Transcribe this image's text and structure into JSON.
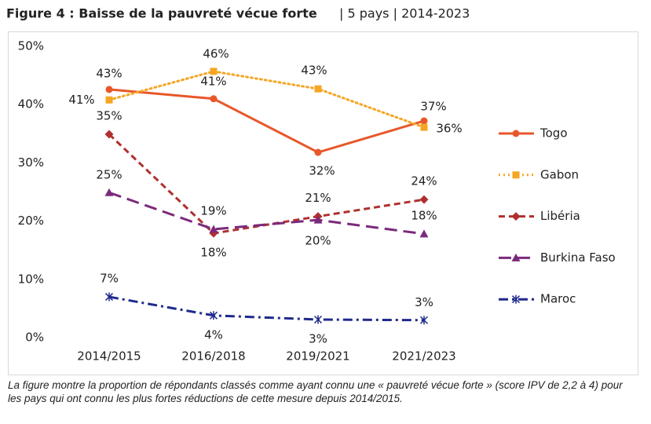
{
  "chart_data": {
    "type": "line",
    "title": "Figure 4 : Baisse de la pauvreté vécue forte",
    "subtitle": "| 5 pays | 2014-2023",
    "note": "La figure montre la proportion de répondants classés comme ayant connu une « pauvreté vécue forte » (score IPV de 2,2 à 4) pour les pays qui ont connu les plus fortes réductions de cette mesure depuis 2014/2015.",
    "categories": [
      "2014/2015",
      "2016/2018",
      "2019/2021",
      "2021/2023"
    ],
    "ylim": [
      0,
      50
    ],
    "yticks": [
      {
        "value": 0,
        "label": "0%"
      },
      {
        "value": 10,
        "label": "10%"
      },
      {
        "value": 20,
        "label": "20%"
      },
      {
        "value": 30,
        "label": "30%"
      },
      {
        "value": 40,
        "label": "40%"
      },
      {
        "value": 50,
        "label": "50%"
      }
    ],
    "grid": false,
    "legend": "right",
    "series": [
      {
        "name": "Togo",
        "color": "#e8572a",
        "line_style": "solid",
        "marker": "circle",
        "values": [
          42.6,
          41.0,
          31.8,
          37.2
        ],
        "value_labels": [
          "43%",
          "41%",
          "32%",
          "37%"
        ]
      },
      {
        "name": "Gabon",
        "color": "#f5a623",
        "line_style": "dotted",
        "marker": "square",
        "values": [
          40.8,
          45.7,
          42.7,
          36.1
        ],
        "value_labels": [
          "41%",
          "46%",
          "43%",
          "36%"
        ]
      },
      {
        "name": "Libéria",
        "color": "#b03030",
        "line_style": "dashed",
        "marker": "diamond",
        "values": [
          34.9,
          17.9,
          20.8,
          23.7
        ],
        "value_labels": [
          "35%",
          "18%",
          "21%",
          "24%"
        ]
      },
      {
        "name": "Burkina Faso",
        "color": "#7b2a7b",
        "line_style": "longdash",
        "marker": "triangle",
        "values": [
          24.9,
          18.6,
          20.2,
          17.8
        ],
        "value_labels": [
          "25%",
          "19%",
          "20%",
          "18%"
        ]
      },
      {
        "name": "Maroc",
        "color": "#1f2a8c",
        "line_style": "dashdot",
        "marker": "asterisk",
        "values": [
          7.0,
          3.8,
          3.1,
          3.0
        ],
        "value_labels": [
          "7%",
          "4%",
          "3%",
          "3%"
        ]
      }
    ]
  }
}
